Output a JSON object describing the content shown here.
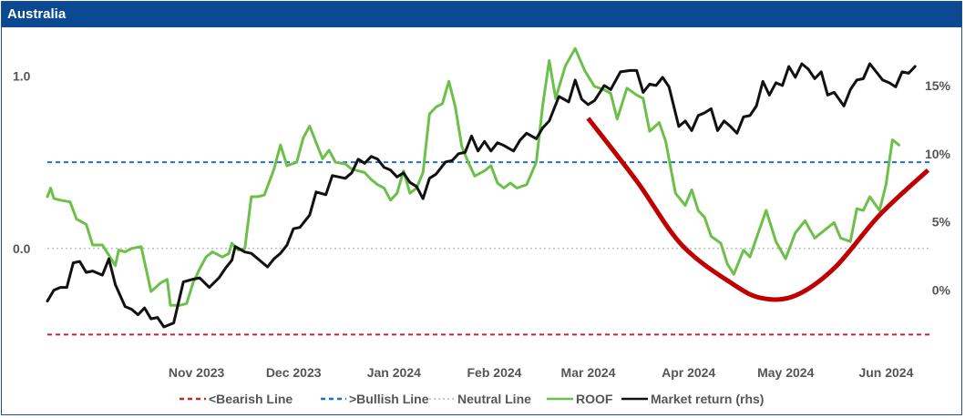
{
  "panel": {
    "title": "Australia"
  },
  "colors": {
    "header_bg": "#0b4a92",
    "bearish": "#c0282f",
    "bullish": "#1f6fd1",
    "neutral": "#b5b5b5",
    "roof": "#6cc04a",
    "market": "#111111",
    "curve": "#c00000",
    "axis_text": "#555555"
  },
  "chart_data": {
    "type": "line",
    "title": "Australia",
    "x_type": "date",
    "xlim": [
      "2023-10-02",
      "2024-07-01"
    ],
    "x_ticks": [
      {
        "label": "Nov 2023",
        "date": "2023-11-01"
      },
      {
        "label": "Dec 2023",
        "date": "2023-12-01"
      },
      {
        "label": "Jan 2024",
        "date": "2024-01-01"
      },
      {
        "label": "Feb 2024",
        "date": "2024-02-01"
      },
      {
        "label": "Mar 2024",
        "date": "2024-03-01"
      },
      {
        "label": "Apr 2024",
        "date": "2024-04-01"
      },
      {
        "label": "May 2024",
        "date": "2024-05-01"
      },
      {
        "label": "Jun 2024",
        "date": "2024-06-01"
      }
    ],
    "y_left": {
      "ticks": [
        0.0,
        1.0
      ],
      "tick_labels": [
        "0.0",
        "1.0"
      ],
      "ylim": [
        -0.63,
        1.23
      ]
    },
    "y_right": {
      "ticks": [
        0,
        5,
        10,
        15
      ],
      "tick_labels": [
        "0%",
        "5%",
        "10%",
        "15%"
      ],
      "ylim": [
        -4.9,
        18.6
      ]
    },
    "grid": false,
    "legend_position": "bottom",
    "reference_lines": [
      {
        "name": "<Bearish Line",
        "y": -0.5,
        "axis": "left",
        "style": "dashed",
        "color": "#c0282f"
      },
      {
        "name": ">Bullish Line",
        "y": 0.5,
        "axis": "left",
        "style": "dashed",
        "color": "#1f6fd1"
      },
      {
        "name": "Neutral Line",
        "y": 0.0,
        "axis": "left",
        "style": "dotted",
        "color": "#b5b5b5"
      }
    ],
    "series": [
      {
        "name": "ROOF",
        "axis": "left",
        "color": "#6cc04a",
        "points": [
          [
            "2023-10-02",
            0.3
          ],
          [
            "2023-10-03",
            0.35
          ],
          [
            "2023-10-04",
            0.29
          ],
          [
            "2023-10-06",
            0.28
          ],
          [
            "2023-10-09",
            0.27
          ],
          [
            "2023-10-11",
            0.17
          ],
          [
            "2023-10-14",
            0.14
          ],
          [
            "2023-10-16",
            0.02
          ],
          [
            "2023-10-19",
            0.02
          ],
          [
            "2023-10-20",
            -0.01
          ],
          [
            "2023-10-23",
            -0.1
          ],
          [
            "2023-10-24",
            -0.01
          ],
          [
            "2023-10-26",
            -0.02
          ],
          [
            "2023-10-28",
            0.0
          ],
          [
            "2023-10-31",
            0.01
          ],
          [
            "2023-11-03",
            -0.25
          ],
          [
            "2023-11-06",
            -0.2
          ],
          [
            "2023-11-08",
            -0.18
          ],
          [
            "2023-11-09",
            -0.33
          ],
          [
            "2023-11-12",
            -0.33
          ],
          [
            "2023-11-14",
            -0.32
          ],
          [
            "2023-11-16",
            -0.2
          ],
          [
            "2023-11-18",
            -0.12
          ],
          [
            "2023-11-20",
            -0.05
          ],
          [
            "2023-11-22",
            -0.02
          ],
          [
            "2023-11-25",
            -0.05
          ],
          [
            "2023-11-27",
            -0.03
          ],
          [
            "2023-11-28",
            0.03
          ],
          [
            "2023-11-30",
            -0.01
          ],
          [
            "2023-12-02",
            0.0
          ],
          [
            "2023-12-04",
            0.3
          ],
          [
            "2023-12-06",
            0.3
          ],
          [
            "2023-12-08",
            0.31
          ],
          [
            "2023-12-11",
            0.46
          ],
          [
            "2023-12-13",
            0.6
          ],
          [
            "2023-12-15",
            0.48
          ],
          [
            "2023-12-18",
            0.5
          ],
          [
            "2023-12-20",
            0.64
          ],
          [
            "2023-12-22",
            0.71
          ],
          [
            "2023-12-26",
            0.52
          ],
          [
            "2023-12-28",
            0.57
          ],
          [
            "2023-12-30",
            0.5
          ],
          [
            "2024-01-02",
            0.49
          ],
          [
            "2024-01-04",
            0.46
          ],
          [
            "2024-01-08",
            0.44
          ],
          [
            "2024-01-10",
            0.4
          ],
          [
            "2024-01-12",
            0.37
          ],
          [
            "2024-01-14",
            0.35
          ],
          [
            "2024-01-16",
            0.28
          ],
          [
            "2024-01-18",
            0.32
          ],
          [
            "2024-01-20",
            0.45
          ],
          [
            "2024-01-22",
            0.32
          ],
          [
            "2024-01-24",
            0.35
          ],
          [
            "2024-01-26",
            0.44
          ],
          [
            "2024-01-28",
            0.78
          ],
          [
            "2024-01-30",
            0.82
          ],
          [
            "2024-02-01",
            0.84
          ],
          [
            "2024-02-03",
            0.97
          ],
          [
            "2024-02-05",
            0.82
          ],
          [
            "2024-02-07",
            0.59
          ],
          [
            "2024-02-09",
            0.5
          ],
          [
            "2024-02-11",
            0.42
          ],
          [
            "2024-02-14",
            0.45
          ],
          [
            "2024-02-16",
            0.48
          ],
          [
            "2024-02-18",
            0.38
          ],
          [
            "2024-02-20",
            0.35
          ],
          [
            "2024-02-22",
            0.38
          ],
          [
            "2024-02-24",
            0.35
          ],
          [
            "2024-02-27",
            0.37
          ],
          [
            "2024-03-01",
            0.5
          ],
          [
            "2024-03-03",
            0.83
          ],
          [
            "2024-03-05",
            1.09
          ],
          [
            "2024-03-07",
            0.87
          ],
          [
            "2024-03-10",
            1.06
          ],
          [
            "2024-03-13",
            1.16
          ],
          [
            "2024-03-16",
            1.03
          ],
          [
            "2024-03-19",
            0.94
          ],
          [
            "2024-03-22",
            0.92
          ],
          [
            "2024-03-24",
            0.9
          ],
          [
            "2024-03-26",
            0.75
          ],
          [
            "2024-03-29",
            0.93
          ],
          [
            "2024-04-01",
            0.89
          ],
          [
            "2024-04-03",
            0.87
          ],
          [
            "2024-04-05",
            0.68
          ],
          [
            "2024-04-08",
            0.73
          ],
          [
            "2024-04-10",
            0.62
          ],
          [
            "2024-04-13",
            0.32
          ],
          [
            "2024-04-16",
            0.25
          ],
          [
            "2024-04-18",
            0.34
          ],
          [
            "2024-04-20",
            0.22
          ],
          [
            "2024-04-22",
            0.18
          ],
          [
            "2024-04-24",
            0.07
          ],
          [
            "2024-04-27",
            0.03
          ],
          [
            "2024-04-29",
            -0.09
          ],
          [
            "2024-05-01",
            -0.15
          ],
          [
            "2024-05-04",
            -0.01
          ],
          [
            "2024-05-06",
            -0.05
          ],
          [
            "2024-05-08",
            0.06
          ],
          [
            "2024-05-11",
            0.22
          ],
          [
            "2024-05-14",
            0.04
          ],
          [
            "2024-05-17",
            -0.06
          ],
          [
            "2024-05-20",
            0.09
          ],
          [
            "2024-05-23",
            0.16
          ],
          [
            "2024-05-26",
            0.06
          ],
          [
            "2024-05-28",
            0.09
          ],
          [
            "2024-06-01",
            0.15
          ],
          [
            "2024-06-03",
            0.06
          ],
          [
            "2024-06-06",
            0.04
          ],
          [
            "2024-06-08",
            0.23
          ],
          [
            "2024-06-10",
            0.22
          ],
          [
            "2024-06-12",
            0.3
          ],
          [
            "2024-06-15",
            0.22
          ],
          [
            "2024-06-17",
            0.37
          ],
          [
            "2024-06-18",
            0.5
          ],
          [
            "2024-06-19",
            0.63
          ],
          [
            "2024-06-21",
            0.6
          ]
        ]
      },
      {
        "name": "Market return (rhs)",
        "axis": "right",
        "color": "#111111",
        "points": [
          [
            "2023-10-02",
            -0.8
          ],
          [
            "2023-10-04",
            0.0
          ],
          [
            "2023-10-06",
            0.2
          ],
          [
            "2023-10-08",
            0.2
          ],
          [
            "2023-10-10",
            2.0
          ],
          [
            "2023-10-12",
            2.1
          ],
          [
            "2023-10-14",
            1.3
          ],
          [
            "2023-10-16",
            1.4
          ],
          [
            "2023-10-19",
            1.1
          ],
          [
            "2023-10-21",
            2.3
          ],
          [
            "2023-10-23",
            0.4
          ],
          [
            "2023-10-26",
            -1.2
          ],
          [
            "2023-10-28",
            -1.4
          ],
          [
            "2023-10-30",
            -1.8
          ],
          [
            "2023-11-01",
            -1.3
          ],
          [
            "2023-11-03",
            -2.1
          ],
          [
            "2023-11-05",
            -2.0
          ],
          [
            "2023-11-07",
            -2.7
          ],
          [
            "2023-11-10",
            -2.4
          ],
          [
            "2023-11-13",
            0.6
          ],
          [
            "2023-11-16",
            0.8
          ],
          [
            "2023-11-18",
            0.9
          ],
          [
            "2023-11-21",
            0.2
          ],
          [
            "2023-11-24",
            0.9
          ],
          [
            "2023-11-26",
            1.6
          ],
          [
            "2023-11-28",
            2.2
          ],
          [
            "2023-11-29",
            3.2
          ],
          [
            "2023-12-02",
            2.8
          ],
          [
            "2023-12-04",
            2.7
          ],
          [
            "2023-12-07",
            2.1
          ],
          [
            "2023-12-09",
            1.7
          ],
          [
            "2023-12-11",
            2.3
          ],
          [
            "2023-12-13",
            2.7
          ],
          [
            "2023-12-15",
            3.3
          ],
          [
            "2023-12-17",
            4.5
          ],
          [
            "2023-12-19",
            4.6
          ],
          [
            "2023-12-22",
            5.5
          ],
          [
            "2023-12-24",
            7.2
          ],
          [
            "2023-12-27",
            7.0
          ],
          [
            "2023-12-29",
            8.4
          ],
          [
            "2024-01-02",
            8.2
          ],
          [
            "2024-01-04",
            8.6
          ],
          [
            "2024-01-06",
            9.6
          ],
          [
            "2024-01-08",
            9.3
          ],
          [
            "2024-01-10",
            9.8
          ],
          [
            "2024-01-12",
            9.6
          ],
          [
            "2024-01-14",
            9.0
          ],
          [
            "2024-01-16",
            8.8
          ],
          [
            "2024-01-18",
            8.3
          ],
          [
            "2024-01-20",
            8.6
          ],
          [
            "2024-01-22",
            7.9
          ],
          [
            "2024-01-24",
            7.6
          ],
          [
            "2024-01-26",
            6.7
          ],
          [
            "2024-01-28",
            8.2
          ],
          [
            "2024-01-30",
            8.5
          ],
          [
            "2024-02-02",
            9.4
          ],
          [
            "2024-02-04",
            9.5
          ],
          [
            "2024-02-06",
            10.0
          ],
          [
            "2024-02-08",
            10.1
          ],
          [
            "2024-02-10",
            11.3
          ],
          [
            "2024-02-12",
            10.2
          ],
          [
            "2024-02-14",
            10.9
          ],
          [
            "2024-02-16",
            10.2
          ],
          [
            "2024-02-18",
            10.8
          ],
          [
            "2024-02-20",
            10.6
          ],
          [
            "2024-02-23",
            10.2
          ],
          [
            "2024-02-25",
            11.0
          ],
          [
            "2024-02-27",
            11.5
          ],
          [
            "2024-03-01",
            11.1
          ],
          [
            "2024-03-03",
            11.9
          ],
          [
            "2024-03-05",
            12.4
          ],
          [
            "2024-03-08",
            14.2
          ],
          [
            "2024-03-11",
            13.8
          ],
          [
            "2024-03-13",
            15.4
          ],
          [
            "2024-03-15",
            14.0
          ],
          [
            "2024-03-17",
            13.6
          ],
          [
            "2024-03-19",
            13.9
          ],
          [
            "2024-03-22",
            15.0
          ],
          [
            "2024-03-24",
            14.7
          ],
          [
            "2024-03-27",
            16.0
          ],
          [
            "2024-03-30",
            16.1
          ],
          [
            "2024-04-01",
            16.1
          ],
          [
            "2024-04-03",
            14.5
          ],
          [
            "2024-04-05",
            15.1
          ],
          [
            "2024-04-07",
            15.0
          ],
          [
            "2024-04-09",
            15.6
          ],
          [
            "2024-04-11",
            14.9
          ],
          [
            "2024-04-14",
            12.0
          ],
          [
            "2024-04-16",
            12.4
          ],
          [
            "2024-04-18",
            11.7
          ],
          [
            "2024-04-20",
            12.8
          ],
          [
            "2024-04-22",
            13.0
          ],
          [
            "2024-04-24",
            13.3
          ],
          [
            "2024-04-26",
            11.7
          ],
          [
            "2024-04-28",
            12.4
          ],
          [
            "2024-04-30",
            12.0
          ],
          [
            "2024-05-02",
            11.5
          ],
          [
            "2024-05-04",
            12.7
          ],
          [
            "2024-05-06",
            12.8
          ],
          [
            "2024-05-08",
            13.5
          ],
          [
            "2024-05-10",
            15.3
          ],
          [
            "2024-05-12",
            14.3
          ],
          [
            "2024-05-14",
            15.2
          ],
          [
            "2024-05-16",
            15.0
          ],
          [
            "2024-05-18",
            16.4
          ],
          [
            "2024-05-20",
            15.6
          ],
          [
            "2024-05-22",
            16.6
          ],
          [
            "2024-05-24",
            16.2
          ],
          [
            "2024-05-26",
            15.5
          ],
          [
            "2024-05-28",
            16.0
          ],
          [
            "2024-05-30",
            14.3
          ],
          [
            "2024-06-01",
            14.5
          ],
          [
            "2024-06-04",
            13.5
          ],
          [
            "2024-06-06",
            14.7
          ],
          [
            "2024-06-08",
            15.4
          ],
          [
            "2024-06-10",
            15.5
          ],
          [
            "2024-06-12",
            16.6
          ],
          [
            "2024-06-14",
            16.0
          ],
          [
            "2024-06-16",
            15.4
          ],
          [
            "2024-06-18",
            15.2
          ],
          [
            "2024-06-20",
            14.9
          ],
          [
            "2024-06-22",
            16.0
          ],
          [
            "2024-06-24",
            15.9
          ],
          [
            "2024-06-26",
            16.4
          ]
        ]
      }
    ],
    "annotations": [
      {
        "type": "curve",
        "color": "#c00000",
        "axis": "right",
        "points": [
          [
            "2024-03-17",
            12.6
          ],
          [
            "2024-04-01",
            8.0
          ],
          [
            "2024-04-15",
            3.3
          ],
          [
            "2024-05-01",
            0.4
          ],
          [
            "2024-05-10",
            -0.6
          ],
          [
            "2024-05-20",
            -0.4
          ],
          [
            "2024-06-01",
            1.6
          ],
          [
            "2024-06-15",
            5.5
          ],
          [
            "2024-06-30",
            8.8
          ]
        ]
      }
    ]
  },
  "legend": {
    "items": [
      {
        "label": "<Bearish Line",
        "style": "dashed",
        "color": "#c0282f"
      },
      {
        "label": ">Bullish Line",
        "style": "dashed",
        "color": "#1f6fd1"
      },
      {
        "label": "Neutral Line",
        "style": "dotted",
        "color": "#b5b5b5"
      },
      {
        "label": "ROOF",
        "style": "solid",
        "color": "#6cc04a"
      },
      {
        "label": "Market return (rhs)",
        "style": "solid",
        "color": "#111111"
      }
    ]
  }
}
